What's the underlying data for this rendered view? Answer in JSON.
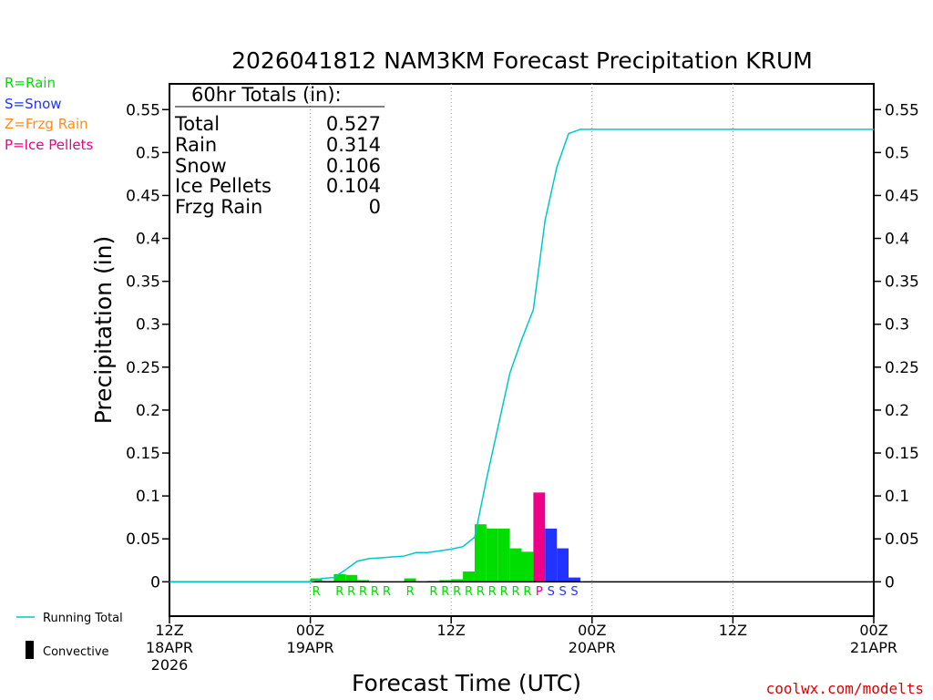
{
  "chart_data": {
    "type": "bar",
    "title": "2026041812 NAM3KM Forecast Precipitation KRUM",
    "xlabel": "Forecast Time (UTC)",
    "ylabel": "Precipitation (in)",
    "ylim": [
      -0.04,
      0.58
    ],
    "xlim_hours": [
      0,
      60
    ],
    "yticks": [
      0,
      0.05,
      0.1,
      0.15,
      0.2,
      0.25,
      0.3,
      0.35,
      0.4,
      0.45,
      0.5,
      0.55
    ],
    "ytick_labels": [
      "0",
      "0.05",
      "0.1",
      "0.15",
      "0.2",
      "0.25",
      "0.3",
      "0.35",
      "0.4",
      "0.45",
      "0.5",
      "0.55"
    ],
    "xticks": [
      {
        "hour": 0,
        "lines": [
          "12Z",
          "18APR",
          "2026"
        ]
      },
      {
        "hour": 12,
        "lines": [
          "00Z",
          "19APR"
        ]
      },
      {
        "hour": 24,
        "lines": [
          "12Z"
        ]
      },
      {
        "hour": 36,
        "lines": [
          "00Z",
          "20APR"
        ]
      },
      {
        "hour": 48,
        "lines": [
          "12Z"
        ]
      },
      {
        "hour": 60,
        "lines": [
          "00Z",
          "21APR"
        ]
      }
    ],
    "bar_hours": [
      12,
      13,
      14,
      15,
      16,
      17,
      18,
      19,
      20,
      21,
      22,
      23,
      24,
      25,
      26,
      27,
      28,
      29,
      30,
      31,
      32,
      33,
      34,
      35,
      36
    ],
    "bar_values": [
      0.0,
      0.004,
      0.001,
      0.009,
      0.008,
      0.002,
      0.0,
      0.0,
      0.0,
      0.004,
      0.0,
      0.001,
      0.002,
      0.003,
      0.012,
      0.067,
      0.062,
      0.062,
      0.039,
      0.035,
      0.104,
      0.062,
      0.039,
      0.005,
      0.0
    ],
    "bar_types": [
      "",
      "R",
      "",
      "R",
      "R",
      "R",
      "R",
      "R",
      "",
      "R",
      "",
      "R",
      "R",
      "R",
      "R",
      "R",
      "R",
      "R",
      "R",
      "R",
      "P",
      "S",
      "S",
      "S",
      ""
    ],
    "running_total": {
      "hours": [
        0,
        12,
        13,
        14,
        15,
        16,
        17,
        18,
        19,
        20,
        21,
        22,
        23,
        24,
        25,
        26,
        27,
        28,
        29,
        30,
        31,
        32,
        33,
        34,
        35,
        36,
        60
      ],
      "values": [
        0,
        0,
        0.004,
        0.005,
        0.014,
        0.024,
        0.027,
        0.028,
        0.029,
        0.03,
        0.034,
        0.034,
        0.036,
        0.038,
        0.041,
        0.052,
        0.119,
        0.181,
        0.243,
        0.282,
        0.317,
        0.421,
        0.483,
        0.522,
        0.527,
        0.527,
        0.527
      ]
    },
    "colors": {
      "R": "#00dd00",
      "S": "#2233ff",
      "Z": "#ff8c1a",
      "P": "#ee0088",
      "line": "#00c8c8"
    }
  },
  "ptype_legend": [
    {
      "label": "R=Rain",
      "color": "#00dd00"
    },
    {
      "label": "S=Snow",
      "color": "#2233ff"
    },
    {
      "label": "Z=Frzg Rain",
      "color": "#ff8c1a"
    },
    {
      "label": "P=Ice Pellets",
      "color": "#ee0088"
    }
  ],
  "totals": {
    "header": "60hr Totals (in):",
    "rows": [
      {
        "name": "Total",
        "value": "0.527"
      },
      {
        "name": "Rain",
        "value": "0.314"
      },
      {
        "name": "Snow",
        "value": "0.106"
      },
      {
        "name": "Ice Pellets",
        "value": "0.104"
      },
      {
        "name": "Frzg Rain",
        "value": "0"
      }
    ]
  },
  "bottom_legend": {
    "running_total_label": "Running Total",
    "convective_label": "Convective"
  },
  "credit": "coolwx.com/modelts"
}
